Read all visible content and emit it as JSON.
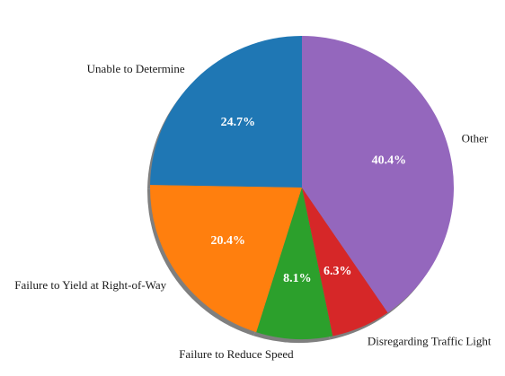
{
  "chart_data": {
    "type": "pie",
    "title": "",
    "slices": [
      {
        "label": "Unable to Determine",
        "value": 24.7,
        "pct_label": "24.7%",
        "color": "#1f77b4"
      },
      {
        "label": "Failure to Yield at Right-of-Way",
        "value": 20.4,
        "pct_label": "20.4%",
        "color": "#ff7f0e"
      },
      {
        "label": "Failure to Reduce Speed",
        "value": 8.1,
        "pct_label": "8.1%",
        "color": "#2ca02c"
      },
      {
        "label": "Disregarding Traffic Light",
        "value": 6.3,
        "pct_label": "6.3%",
        "color": "#d62728"
      },
      {
        "label": "Other",
        "value": 40.4,
        "pct_label": "40.4%",
        "color": "#9467bd"
      }
    ],
    "start_angle": "top",
    "direction": "counterclockwise",
    "shadow": true,
    "shadow_color": "#7f7f7f"
  }
}
